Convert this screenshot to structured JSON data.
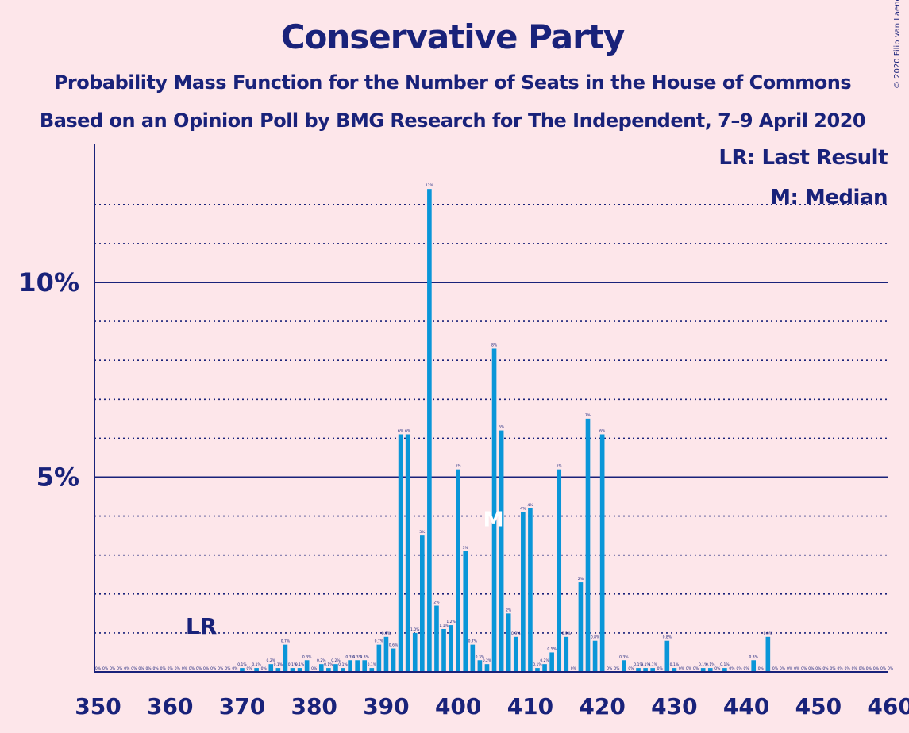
{
  "title": "Conservative Party",
  "subtitle1": "Probability Mass Function for the Number of Seats in the House of Commons",
  "subtitle2": "Based on an Opinion Poll by BMG Research for The Independent, 7–9 April 2020",
  "copyright": "© 2020 Filip van Laenen",
  "legend": {
    "last_result": "LR: Last Result",
    "median": "M: Median"
  },
  "colors": {
    "background": "#fde6ea",
    "bar": "#0a96d8",
    "text": "#19227a"
  },
  "chart_data": {
    "type": "bar",
    "title": "Conservative Party",
    "xlabel": "",
    "ylabel": "",
    "xlim": [
      350,
      460
    ],
    "ylim": [
      0,
      12.5
    ],
    "x_ticks": [
      "350",
      "360",
      "370",
      "380",
      "390",
      "400",
      "410",
      "420",
      "430",
      "440",
      "450",
      "460"
    ],
    "y_tick_labels": [
      {
        "value": 5,
        "label": "5%"
      },
      {
        "value": 10,
        "label": "10%"
      }
    ],
    "grid": "dotted lines at every 1%, solid lines at 5% and 10%",
    "last_result": {
      "seat": 365,
      "label": "LR"
    },
    "median": {
      "seat": 405,
      "label": "M"
    },
    "x": [
      350,
      351,
      352,
      353,
      354,
      355,
      356,
      357,
      358,
      359,
      360,
      361,
      362,
      363,
      364,
      365,
      366,
      367,
      368,
      369,
      370,
      371,
      372,
      373,
      374,
      375,
      376,
      377,
      378,
      379,
      380,
      381,
      382,
      383,
      384,
      385,
      386,
      387,
      388,
      389,
      390,
      391,
      392,
      393,
      394,
      395,
      396,
      397,
      398,
      399,
      400,
      401,
      402,
      403,
      404,
      405,
      406,
      407,
      408,
      409,
      410,
      411,
      412,
      413,
      414,
      415,
      416,
      417,
      418,
      419,
      420,
      421,
      422,
      423,
      424,
      425,
      426,
      427,
      428,
      429,
      430,
      431,
      432,
      433,
      434,
      435,
      436,
      437,
      438,
      439,
      440,
      441,
      442,
      443,
      444,
      445,
      446,
      447,
      448,
      449,
      450,
      451,
      452,
      453,
      454,
      455,
      456,
      457,
      458,
      459,
      460
    ],
    "values": [
      0,
      0,
      0,
      0,
      0,
      0,
      0,
      0,
      0,
      0,
      0,
      0,
      0,
      0,
      0,
      0,
      0,
      0,
      0,
      0,
      0.1,
      0,
      0.1,
      0,
      0.2,
      0.1,
      0.7,
      0.1,
      0.1,
      0.3,
      0,
      0.2,
      0.1,
      0.2,
      0.1,
      0.3,
      0.3,
      0.3,
      0.1,
      0.7,
      0.9,
      0.6,
      6.1,
      6.1,
      1.0,
      3.5,
      12.4,
      1.7,
      1.1,
      1.2,
      5.2,
      3.1,
      0.7,
      0.3,
      0.2,
      8.3,
      6.2,
      1.5,
      0.9,
      4.1,
      4.2,
      0.1,
      0.2,
      0.5,
      5.2,
      0.9,
      0,
      2.3,
      6.5,
      0.8,
      6.1,
      0,
      0,
      0.3,
      0,
      0.1,
      0.1,
      0.1,
      0,
      0.8,
      0.1,
      0,
      0,
      0,
      0.1,
      0.1,
      0,
      0.1,
      0,
      0,
      0,
      0.3,
      0,
      0.9,
      0,
      0,
      0,
      0,
      0,
      0,
      0,
      0,
      0,
      0,
      0,
      0,
      0,
      0,
      0,
      0,
      0
    ],
    "labels": [
      "0%",
      "0%",
      "0%",
      "0%",
      "0%",
      "0%",
      "0%",
      "0%",
      "0%",
      "0%",
      "0%",
      "0%",
      "0%",
      "0%",
      "0%",
      "0%",
      "0%",
      "0%",
      "0%",
      "0%",
      "0.1%",
      "0%",
      "0.1%",
      "0%",
      "0.2%",
      "0.1%",
      "0.7%",
      "0.1%",
      "0.1%",
      "0.3%",
      "0%",
      "0.2%",
      "0.1%",
      "0.2%",
      "0.1%",
      "0.3%",
      "0.3%",
      "0.3%",
      "0.1%",
      "0.7%",
      "0.9%",
      "0.6%",
      "6%",
      "6%",
      "1.0%",
      "3%",
      "12%",
      "2%",
      "1.1%",
      "1.2%",
      "5%",
      "3%",
      "0.7%",
      "0.3%",
      "0.2%",
      "8%",
      "6%",
      "2%",
      "0.9%",
      "4%",
      "4%",
      "0.1%",
      "0.2%",
      "0.5%",
      "5%",
      "0.9%",
      "0%",
      "2%",
      "7%",
      "0.8%",
      "6%",
      "0%",
      "0%",
      "0.3%",
      "0%",
      "0.1%",
      "0.1%",
      "0.1%",
      "0%",
      "0.8%",
      "0.1%",
      "0%",
      "0%",
      "0%",
      "0.1%",
      "0.1%",
      "0%",
      "0.1%",
      "0%",
      "0%",
      "0%",
      "0.3%",
      "0%",
      "0.9%",
      "0%",
      "0%",
      "0%",
      "0%",
      "0%",
      "0%",
      "0%",
      "0%",
      "0%",
      "0%",
      "0%",
      "0%",
      "0%",
      "0%",
      "0%",
      "0%",
      "0%"
    ]
  }
}
